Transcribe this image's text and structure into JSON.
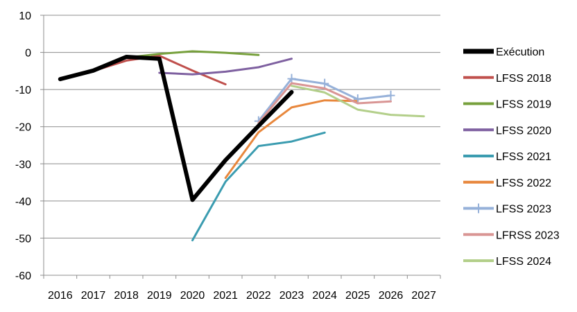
{
  "chart_data": {
    "type": "line",
    "x": [
      2016,
      2017,
      2018,
      2019,
      2020,
      2021,
      2022,
      2023,
      2024,
      2025,
      2026,
      2027
    ],
    "ylim": [
      -60,
      10
    ],
    "yticks": [
      10,
      0,
      -10,
      -20,
      -30,
      -40,
      -50,
      -60
    ],
    "grid": "horizontal",
    "legend": "right",
    "series": [
      {
        "name": "Exécution",
        "color": "#000000",
        "width": 6,
        "marker": false,
        "points": [
          [
            2016,
            -7.2
          ],
          [
            2017,
            -4.9
          ],
          [
            2018,
            -1.2
          ],
          [
            2019,
            -1.7
          ],
          [
            2020,
            -39.7
          ],
          [
            2021,
            -29.0
          ],
          [
            2022,
            -19.8
          ],
          [
            2023,
            -10.7
          ]
        ]
      },
      {
        "name": "LFSS 2018",
        "color": "#c0504d",
        "width": 3,
        "marker": false,
        "points": [
          [
            2017,
            -5.0
          ],
          [
            2018,
            -2.2
          ],
          [
            2019,
            -0.9
          ],
          [
            2020,
            -4.9
          ],
          [
            2021,
            -8.6
          ]
        ]
      },
      {
        "name": "LFSS 2019",
        "color": "#77a03c",
        "width": 3,
        "marker": false,
        "points": [
          [
            2018,
            -1.4
          ],
          [
            2019,
            -0.4
          ],
          [
            2020,
            0.3
          ],
          [
            2021,
            -0.1
          ],
          [
            2022,
            -0.7
          ]
        ]
      },
      {
        "name": "LFSS 2020",
        "color": "#7e60a0",
        "width": 3,
        "marker": false,
        "points": [
          [
            2019,
            -5.5
          ],
          [
            2020,
            -5.9
          ],
          [
            2021,
            -5.2
          ],
          [
            2022,
            -4.0
          ],
          [
            2023,
            -1.7
          ]
        ]
      },
      {
        "name": "LFSS 2021",
        "color": "#3b9cb0",
        "width": 3,
        "marker": false,
        "points": [
          [
            2020,
            -50.6
          ],
          [
            2021,
            -34.8
          ],
          [
            2022,
            -25.2
          ],
          [
            2023,
            -24.0
          ],
          [
            2024,
            -21.6
          ]
        ]
      },
      {
        "name": "LFSS 2022",
        "color": "#e8873c",
        "width": 3,
        "marker": false,
        "points": [
          [
            2021,
            -33.8
          ],
          [
            2022,
            -21.5
          ],
          [
            2023,
            -14.8
          ],
          [
            2024,
            -12.9
          ],
          [
            2025,
            -13.1
          ]
        ]
      },
      {
        "name": "LFSS 2023",
        "color": "#96b1d9",
        "width": 3,
        "marker": true,
        "points": [
          [
            2022,
            -18.5
          ],
          [
            2023,
            -7.1
          ],
          [
            2024,
            -8.4
          ],
          [
            2025,
            -12.6
          ],
          [
            2026,
            -11.6
          ]
        ]
      },
      {
        "name": "LFRSS 2023",
        "color": "#d99594",
        "width": 3,
        "marker": false,
        "points": [
          [
            2022,
            -19.0
          ],
          [
            2023,
            -8.3
          ],
          [
            2024,
            -9.7
          ],
          [
            2025,
            -13.7
          ],
          [
            2026,
            -13.2
          ]
        ]
      },
      {
        "name": "LFSS 2024",
        "color": "#b3cf8a",
        "width": 3,
        "marker": false,
        "points": [
          [
            2023,
            -9.0
          ],
          [
            2024,
            -10.8
          ],
          [
            2025,
            -15.4
          ],
          [
            2026,
            -16.8
          ],
          [
            2027,
            -17.2
          ]
        ]
      }
    ]
  }
}
